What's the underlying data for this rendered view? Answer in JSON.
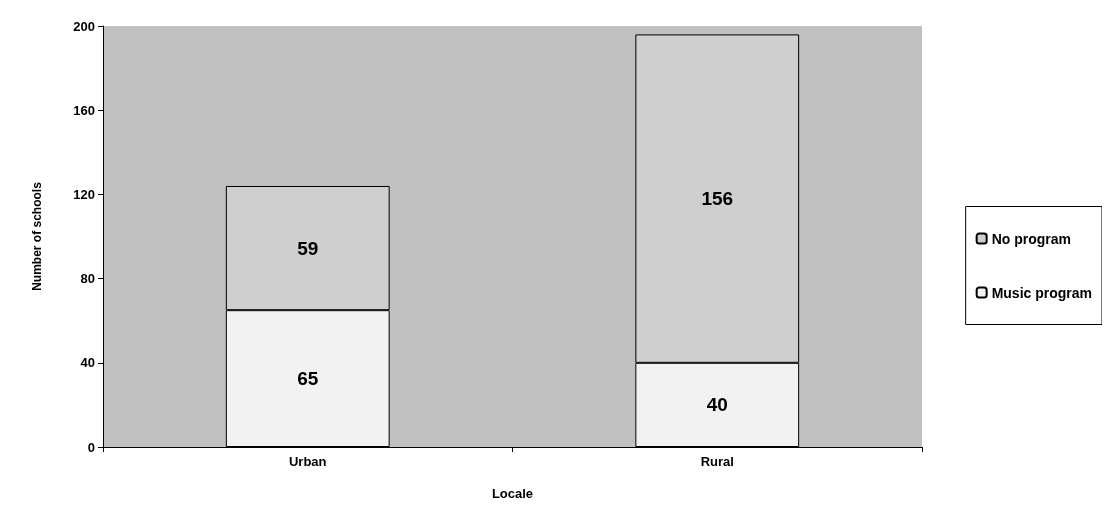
{
  "chart_data": {
    "type": "bar",
    "stacked": true,
    "xlabel": "Locale",
    "ylabel": "Number of schools",
    "categories": [
      "Urban",
      "Rural"
    ],
    "series": [
      {
        "name": "Music program",
        "color": "#f2f2f2",
        "values": [
          65,
          40
        ]
      },
      {
        "name": "No program",
        "color": "#cfcfcf",
        "values": [
          59,
          156
        ]
      }
    ],
    "ylim": [
      0,
      200
    ],
    "yticks": [
      0,
      40,
      80,
      120,
      160,
      200
    ],
    "grid": false,
    "legend": "right",
    "data_labels": true
  }
}
